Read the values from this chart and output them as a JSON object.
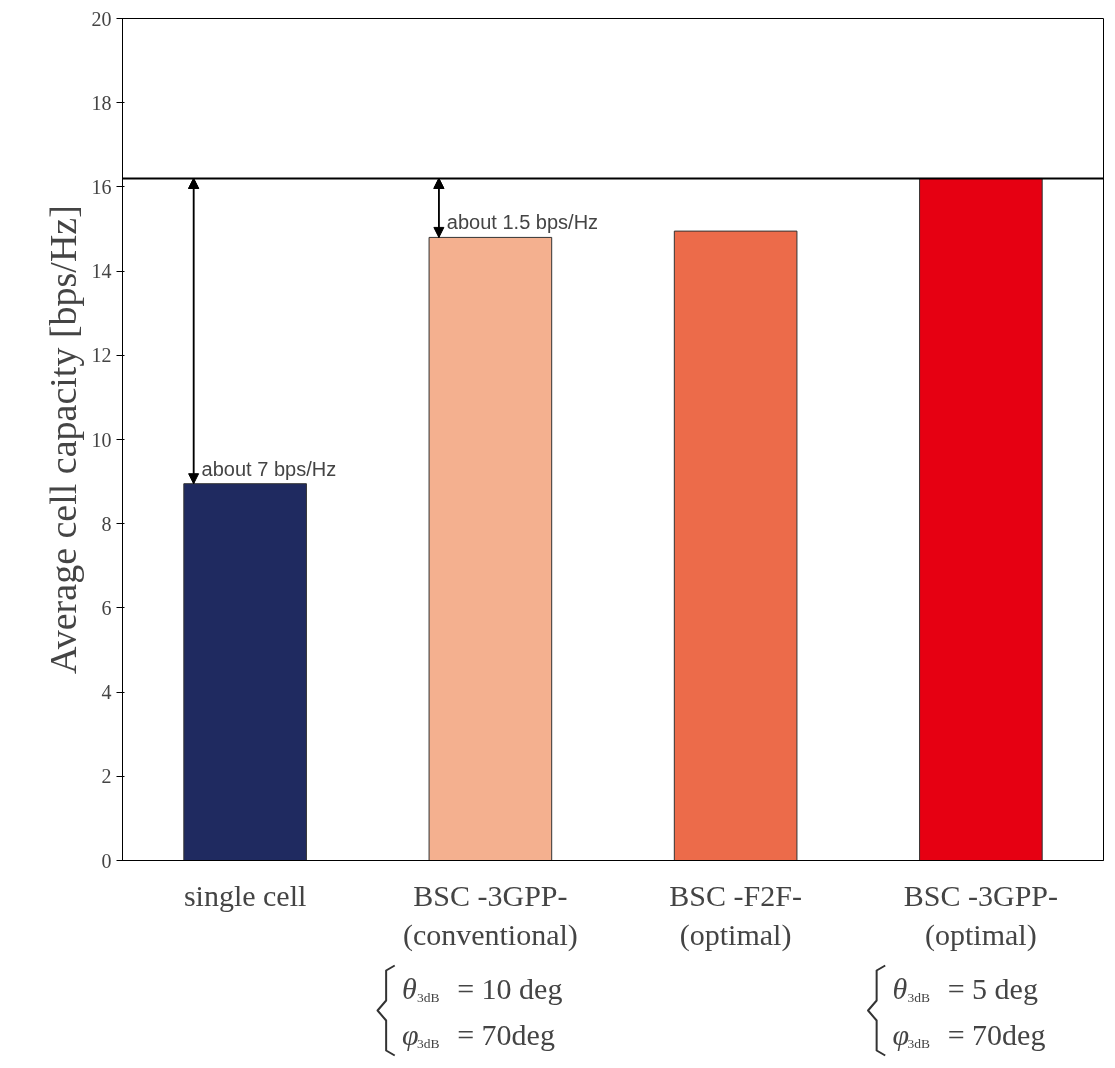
{
  "chart_data": {
    "type": "bar",
    "ylabel": "Average cell capacity [bps/Hz]",
    "categories": [
      "single cell",
      "BSC -3GPP-\n(conventional)",
      "BSC -F2F-\n(optimal)",
      "BSC -3GPP-\n(optimal)"
    ],
    "values": [
      8.95,
      14.8,
      14.95,
      16.2
    ],
    "colors": [
      "#1f2a60",
      "#f4b08f",
      "#ec6b4a",
      "#e60012"
    ],
    "ylim": [
      0,
      20
    ],
    "yticks": [
      0,
      2,
      4,
      6,
      8,
      10,
      12,
      14,
      16,
      18,
      20
    ],
    "grid": false,
    "ref_lines": [
      {
        "axis": "y",
        "value": 16.2,
        "color": "#000000"
      }
    ],
    "annotations": [
      {
        "text": "about 7 bps/Hz",
        "x": "single cell",
        "y": 8.95
      },
      {
        "text": "about 1.5 bps/Hz",
        "x": "BSC -3GPP-\n(conventional)",
        "y": 14.8
      },
      "θ$_{3dB}$ = 10 deg\nφ$_{3dB}$ = 70deg",
      "θ$_{3dB}$ = 5 deg\nφ$_{3dB}$ = 70deg"
    ]
  }
}
